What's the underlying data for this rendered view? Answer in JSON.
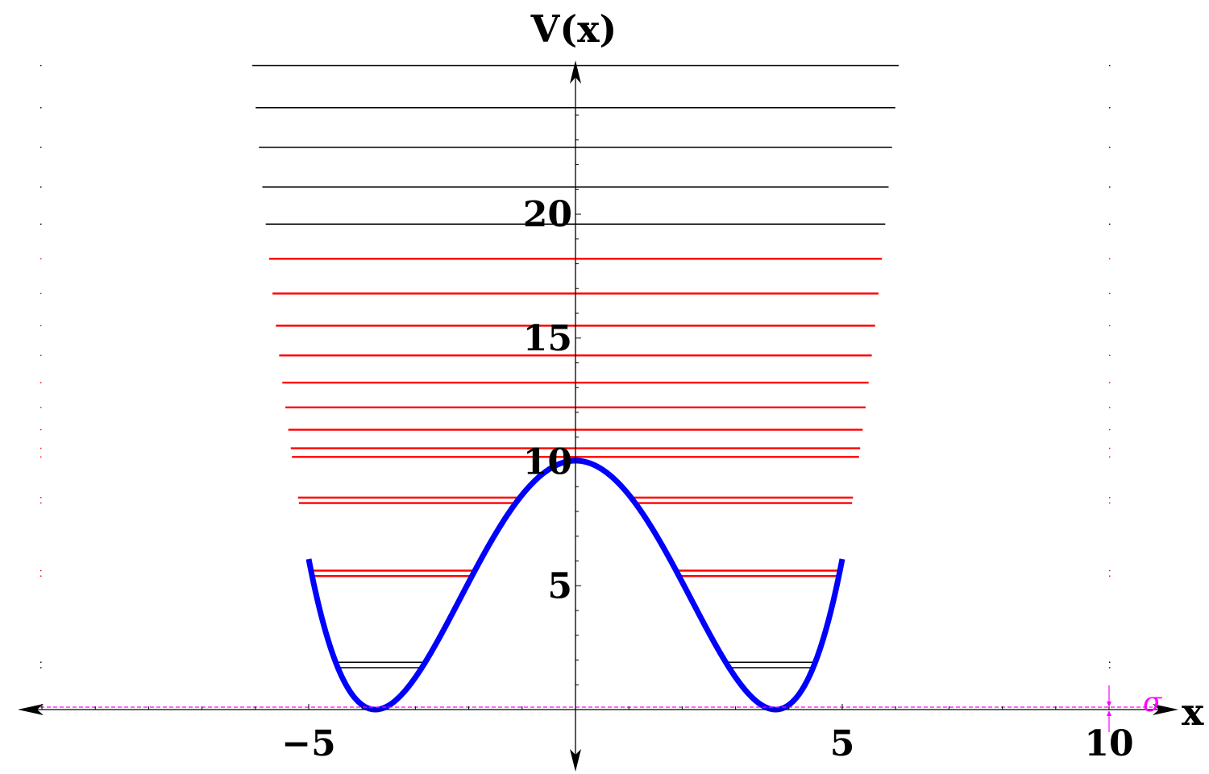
{
  "chart_data": {
    "type": "line",
    "title": "",
    "xlabel": "x",
    "ylabel": "V(x)",
    "xlim": [
      -10.4,
      11.6
    ],
    "ylim": [
      -2.4,
      24.6
    ],
    "grid": false,
    "x_ticks": [
      {
        "value": -5,
        "label": "−5"
      },
      {
        "value": 5,
        "label": "5"
      },
      {
        "value": 10,
        "label": "10"
      }
    ],
    "y_ticks": [
      {
        "value": 5,
        "label": "5"
      },
      {
        "value": 10,
        "label": "10"
      },
      {
        "value": 15,
        "label": "15"
      },
      {
        "value": 20,
        "label": "20"
      }
    ],
    "potential": {
      "formula": "V(x) = a*(x^2 - b^2)^2 / b^4, nearly flat top near x=0",
      "a": 10.05,
      "b": 3.75,
      "color": "#0000ff",
      "x_range": [
        -5.0,
        5.0
      ]
    },
    "levels": [
      {
        "E": 1.8,
        "color": "#000000",
        "doublet": true
      },
      {
        "E": 5.5,
        "color": "#ff0000",
        "doublet": true
      },
      {
        "E": 8.45,
        "color": "#ff0000",
        "doublet": true
      },
      {
        "E": 10.2,
        "color": "#ff0000",
        "doublet": false
      },
      {
        "E": 10.55,
        "color": "#ff0000",
        "doublet": false
      },
      {
        "E": 11.3,
        "color": "#ff0000",
        "doublet": false
      },
      {
        "E": 12.2,
        "color": "#ff0000",
        "doublet": false
      },
      {
        "E": 13.2,
        "color": "#ff0000",
        "doublet": false
      },
      {
        "E": 14.3,
        "color": "#ff0000",
        "doublet": false
      },
      {
        "E": 15.5,
        "color": "#ff0000",
        "doublet": false
      },
      {
        "E": 16.8,
        "color": "#ff0000",
        "doublet": false
      },
      {
        "E": 18.2,
        "color": "#ff0000",
        "doublet": false
      },
      {
        "E": 19.6,
        "color": "#000000",
        "doublet": false
      },
      {
        "E": 21.1,
        "color": "#000000",
        "doublet": false
      },
      {
        "E": 22.7,
        "color": "#000000",
        "doublet": false
      },
      {
        "E": 24.3,
        "color": "#000000",
        "doublet": false
      },
      {
        "E": 26.0,
        "color": "#000000",
        "doublet": false
      }
    ],
    "sigma": {
      "label": "σ",
      "value": 0.1,
      "x": 10,
      "color": "#ff00ff"
    }
  }
}
